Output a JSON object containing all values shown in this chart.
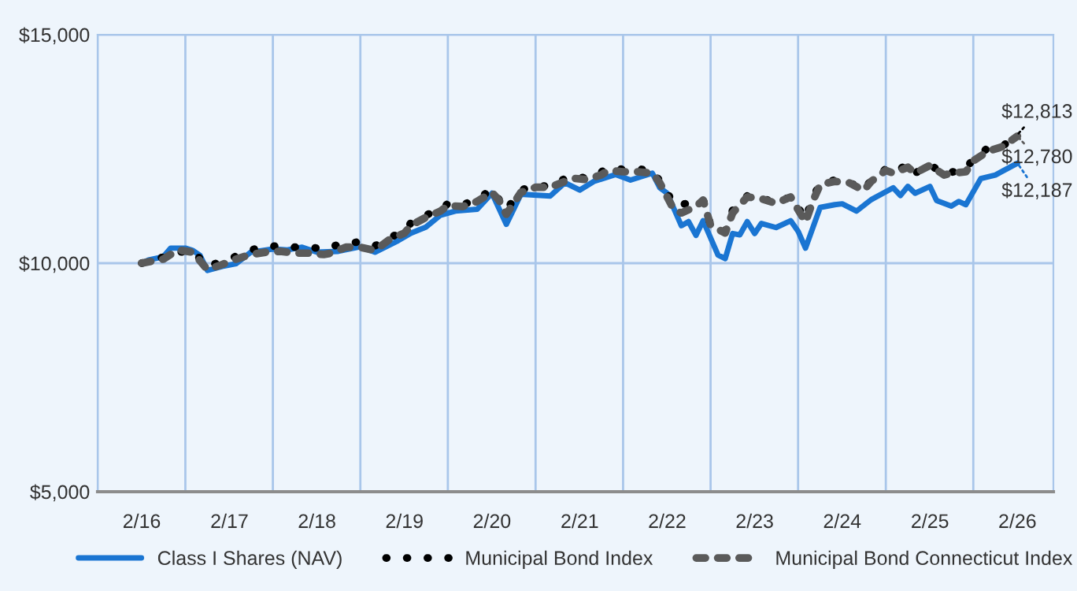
{
  "chart_data": {
    "type": "line",
    "series": [
      {
        "name": "Class I Shares (NAV)",
        "color": "#1a75d2",
        "line_style": "solid",
        "x": [
          "2016-02",
          "2016-03",
          "2016-05",
          "2016-06",
          "2016-08",
          "2016-09",
          "2016-10",
          "2016-11",
          "2017-01",
          "2017-03",
          "2017-05",
          "2017-08",
          "2017-10",
          "2017-12",
          "2018-02",
          "2018-05",
          "2018-08",
          "2018-10",
          "2019-01",
          "2019-03",
          "2019-05",
          "2019-07",
          "2019-09",
          "2019-12",
          "2020-02",
          "2020-04",
          "2020-06",
          "2020-10",
          "2020-12",
          "2021-02",
          "2021-04",
          "2021-07",
          "2021-09",
          "2021-12",
          "2022-01",
          "2022-02",
          "2022-04",
          "2022-05",
          "2022-06",
          "2022-07",
          "2022-09",
          "2022-10",
          "2022-11",
          "2022-12",
          "2023-01",
          "2023-02",
          "2023-03",
          "2023-05",
          "2023-07",
          "2023-08",
          "2023-09",
          "2023-11",
          "2024-01",
          "2024-02",
          "2024-04",
          "2024-06",
          "2024-09",
          "2024-10",
          "2024-11",
          "2024-12",
          "2025-02",
          "2025-03",
          "2025-05",
          "2025-06",
          "2025-07",
          "2025-09",
          "2025-11",
          "2026-02"
        ],
        "values": [
          10000,
          10070,
          10140,
          10330,
          10330,
          10280,
          10170,
          9840,
          9930,
          9990,
          10240,
          10310,
          10290,
          10350,
          10240,
          10260,
          10360,
          10240,
          10480,
          10660,
          10790,
          11050,
          11140,
          11180,
          11530,
          10850,
          11510,
          11470,
          11760,
          11600,
          11790,
          11940,
          11820,
          11970,
          11650,
          11530,
          10820,
          10910,
          10610,
          10930,
          10180,
          10100,
          10650,
          10620,
          10910,
          10650,
          10870,
          10780,
          10930,
          10700,
          10330,
          11220,
          11280,
          11300,
          11140,
          11390,
          11650,
          11480,
          11680,
          11530,
          11680,
          11370,
          11250,
          11350,
          11280,
          11850,
          11930,
          12187
        ]
      },
      {
        "name": "Municipal Bond Index",
        "color": "#000000",
        "line_style": "dotted",
        "x": [
          "2016-02",
          "2016-03",
          "2016-05",
          "2016-07",
          "2016-09",
          "2016-11",
          "2017-01",
          "2017-03",
          "2017-05",
          "2017-07",
          "2017-09",
          "2017-11",
          "2018-01",
          "2018-03",
          "2018-04",
          "2018-06",
          "2018-08",
          "2018-10",
          "2018-12",
          "2019-02",
          "2019-03",
          "2019-05",
          "2019-07",
          "2019-08",
          "2019-10",
          "2019-12",
          "2020-02",
          "2020-04",
          "2020-05",
          "2020-06",
          "2020-08",
          "2020-10",
          "2020-12",
          "2021-01",
          "2021-03",
          "2021-05",
          "2021-06",
          "2021-08",
          "2021-10",
          "2021-12",
          "2022-01",
          "2022-02",
          "2022-03",
          "2022-04",
          "2022-07",
          "2022-08",
          "2022-10",
          "2022-11",
          "2023-01",
          "2023-03",
          "2023-05",
          "2023-07",
          "2023-08",
          "2023-09",
          "2023-10",
          "2023-11",
          "2024-01",
          "2024-03",
          "2024-05",
          "2024-06",
          "2024-08",
          "2024-09",
          "2024-11",
          "2024-12",
          "2025-02",
          "2025-04",
          "2025-05",
          "2025-07",
          "2025-08",
          "2025-10",
          "2025-12",
          "2026-02"
        ],
        "values": [
          10000,
          10070,
          10130,
          10240,
          10270,
          9920,
          10050,
          10150,
          10290,
          10360,
          10380,
          10350,
          10350,
          10310,
          10360,
          10450,
          10460,
          10380,
          10560,
          10700,
          10890,
          11050,
          11180,
          11300,
          11280,
          11390,
          11620,
          11160,
          11390,
          11600,
          11700,
          11680,
          11850,
          11910,
          11860,
          11990,
          12100,
          12050,
          12060,
          12030,
          11800,
          11550,
          11280,
          11280,
          11390,
          10840,
          10700,
          11160,
          11470,
          11420,
          11330,
          11450,
          11220,
          10960,
          11450,
          11730,
          11820,
          11770,
          11600,
          11820,
          12060,
          11970,
          12170,
          11970,
          12160,
          11940,
          11990,
          12060,
          12290,
          12520,
          12560,
          12813
        ]
      },
      {
        "name": "Municipal Bond Connecticut Index",
        "color": "#5a5a5a",
        "line_style": "dashed",
        "x": [
          "2016-02",
          "2016-03",
          "2016-05",
          "2016-07",
          "2016-09",
          "2016-11",
          "2017-01",
          "2017-03",
          "2017-05",
          "2017-07",
          "2017-09",
          "2017-11",
          "2018-01",
          "2018-03",
          "2018-04",
          "2018-06",
          "2018-08",
          "2018-10",
          "2018-12",
          "2019-02",
          "2019-03",
          "2019-05",
          "2019-07",
          "2019-08",
          "2019-10",
          "2019-12",
          "2020-02",
          "2020-03",
          "2020-04",
          "2020-05",
          "2020-06",
          "2020-08",
          "2020-10",
          "2020-12",
          "2021-01",
          "2021-03",
          "2021-05",
          "2021-06",
          "2021-08",
          "2021-10",
          "2021-12",
          "2022-01",
          "2022-02",
          "2022-03",
          "2022-04",
          "2022-06",
          "2022-07",
          "2022-08",
          "2022-10",
          "2022-11",
          "2023-01",
          "2023-03",
          "2023-05",
          "2023-07",
          "2023-08",
          "2023-09",
          "2023-10",
          "2023-11",
          "2024-01",
          "2024-03",
          "2024-05",
          "2024-06",
          "2024-08",
          "2024-09",
          "2024-11",
          "2024-12",
          "2025-02",
          "2025-04",
          "2025-05",
          "2025-07",
          "2025-08",
          "2025-10",
          "2025-12",
          "2026-02"
        ],
        "values": [
          10000,
          10030,
          10090,
          10290,
          10240,
          9860,
          9970,
          10090,
          10190,
          10240,
          10260,
          10220,
          10220,
          10190,
          10220,
          10350,
          10350,
          10280,
          10520,
          10660,
          10830,
          11000,
          11140,
          11260,
          11240,
          11350,
          11550,
          11380,
          11070,
          11310,
          11550,
          11660,
          11660,
          11790,
          11860,
          11830,
          11930,
          12030,
          12000,
          12000,
          11970,
          11760,
          11450,
          11170,
          11100,
          11240,
          11380,
          10830,
          10660,
          11100,
          11450,
          11410,
          11310,
          11450,
          11170,
          10900,
          11350,
          11720,
          11790,
          11760,
          11590,
          11790,
          12030,
          11970,
          12100,
          11970,
          12140,
          11930,
          11970,
          12000,
          12240,
          12450,
          12550,
          12780
        ]
      }
    ],
    "ylim": [
      5000,
      15000
    ],
    "yticks": [
      {
        "value": 5000,
        "label": "$5,000"
      },
      {
        "value": 10000,
        "label": "$10,000"
      },
      {
        "value": 15000,
        "label": "$15,000"
      }
    ],
    "xlim": [
      "2015-08",
      "2026-07"
    ],
    "xticks": [
      {
        "value": "2015-08",
        "label": null
      },
      {
        "value": "2016-02",
        "label": "2/16"
      },
      {
        "value": "2016-08",
        "label": null
      },
      {
        "value": "2017-02",
        "label": "2/17"
      },
      {
        "value": "2017-08",
        "label": null
      },
      {
        "value": "2018-02",
        "label": "2/18"
      },
      {
        "value": "2018-08",
        "label": null
      },
      {
        "value": "2019-02",
        "label": "2/19"
      },
      {
        "value": "2019-08",
        "label": null
      },
      {
        "value": "2020-02",
        "label": "2/20"
      },
      {
        "value": "2020-08",
        "label": null
      },
      {
        "value": "2021-02",
        "label": "2/21"
      },
      {
        "value": "2021-08",
        "label": null
      },
      {
        "value": "2022-02",
        "label": "2/22"
      },
      {
        "value": "2022-08",
        "label": null
      },
      {
        "value": "2023-02",
        "label": "2/23"
      },
      {
        "value": "2023-08",
        "label": null
      },
      {
        "value": "2024-02",
        "label": "2/24"
      },
      {
        "value": "2024-08",
        "label": null
      },
      {
        "value": "2025-02",
        "label": "2/25"
      },
      {
        "value": "2025-08",
        "label": null
      },
      {
        "value": "2026-02",
        "label": "2/26"
      }
    ],
    "grid": true,
    "legend": "bottom",
    "annotations": [
      {
        "text": "$12,813",
        "x": "2026-02",
        "y": 12813
      },
      {
        "text": "$12,780",
        "x": "2026-02",
        "y": 12780
      },
      {
        "text": "$12,187",
        "x": "2026-02",
        "y": 12187
      }
    ]
  }
}
